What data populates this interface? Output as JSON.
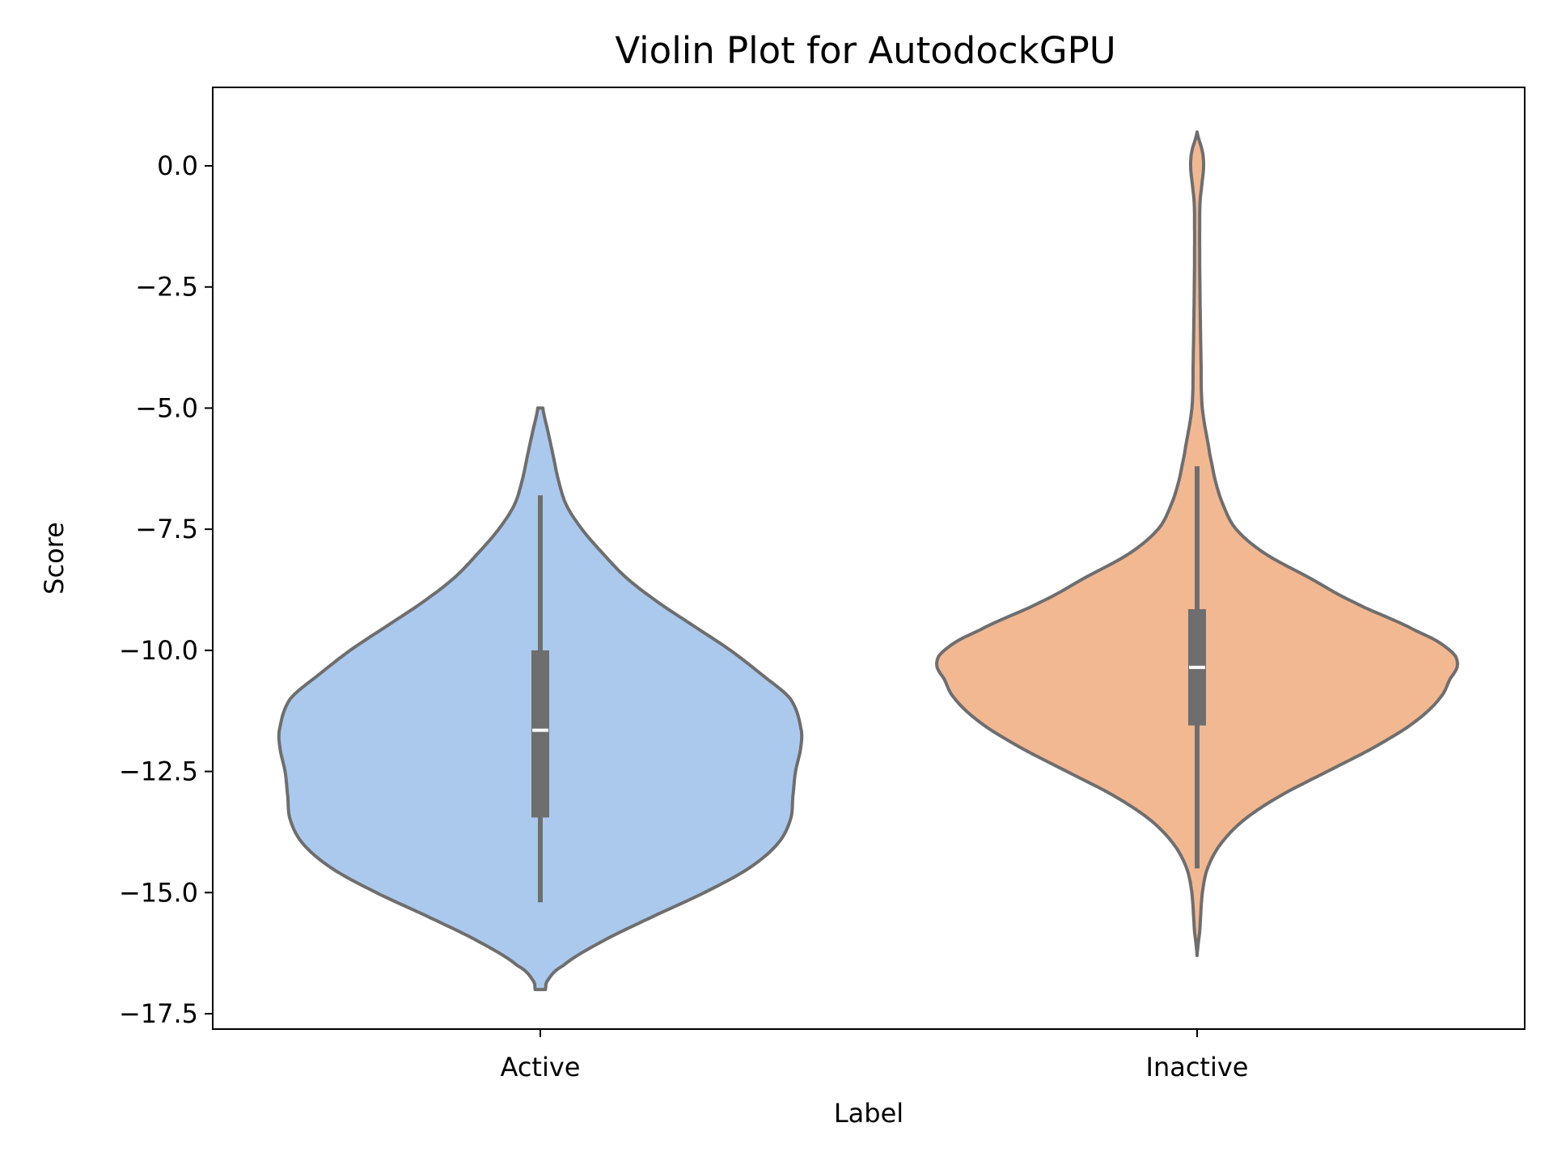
{
  "chart_data": {
    "type": "violin",
    "title": "Violin Plot for AutodockGPU",
    "xlabel": "Label",
    "ylabel": "Score",
    "ylim": [
      -17.8,
      1.6
    ],
    "yticks": [
      0.0,
      -2.5,
      -5.0,
      -7.5,
      -10.0,
      -12.5,
      -15.0,
      -17.5
    ],
    "ytick_labels": [
      "0.0",
      "−2.5",
      "−5.0",
      "−7.5",
      "−10.0",
      "−12.5",
      "−15.0",
      "−17.5"
    ],
    "categories": [
      "Active",
      "Inactive"
    ],
    "grid": false,
    "edge_color": "#6e6e6e",
    "series": [
      {
        "category": "Active",
        "color": "#abc9ec",
        "min": -15.2,
        "q1": -13.45,
        "median": -11.65,
        "q3": -10.0,
        "max": -6.8,
        "violin_min": -17.0,
        "violin_max": -5.0,
        "density_profile": [
          [
            -17.0,
            0.02
          ],
          [
            -16.8,
            0.03
          ],
          [
            -16.5,
            0.09
          ],
          [
            -16.0,
            0.24
          ],
          [
            -15.5,
            0.43
          ],
          [
            -15.0,
            0.63
          ],
          [
            -14.5,
            0.8
          ],
          [
            -14.0,
            0.91
          ],
          [
            -13.5,
            0.96
          ],
          [
            -13.0,
            0.97
          ],
          [
            -12.5,
            0.98
          ],
          [
            -12.0,
            1.0
          ],
          [
            -11.6,
            1.0
          ],
          [
            -11.0,
            0.96
          ],
          [
            -10.5,
            0.85
          ],
          [
            -10.0,
            0.73
          ],
          [
            -9.5,
            0.59
          ],
          [
            -9.0,
            0.45
          ],
          [
            -8.5,
            0.33
          ],
          [
            -8.0,
            0.24
          ],
          [
            -7.5,
            0.16
          ],
          [
            -7.0,
            0.1
          ],
          [
            -6.5,
            0.07
          ],
          [
            -6.0,
            0.05
          ],
          [
            -5.5,
            0.03
          ],
          [
            -5.0,
            0.01
          ]
        ]
      },
      {
        "category": "Inactive",
        "color": "#f2b892",
        "min": -14.5,
        "q1": -11.55,
        "median": -10.35,
        "q3": -9.15,
        "max": -6.2,
        "violin_min": -16.3,
        "violin_max": 0.7,
        "density_profile": [
          [
            -16.3,
            0.0
          ],
          [
            -15.8,
            0.01
          ],
          [
            -15.0,
            0.02
          ],
          [
            -14.5,
            0.04
          ],
          [
            -14.0,
            0.09
          ],
          [
            -13.5,
            0.18
          ],
          [
            -13.0,
            0.32
          ],
          [
            -12.5,
            0.5
          ],
          [
            -12.0,
            0.68
          ],
          [
            -11.5,
            0.83
          ],
          [
            -11.0,
            0.93
          ],
          [
            -10.6,
            0.97
          ],
          [
            -10.3,
            1.0
          ],
          [
            -10.0,
            0.97
          ],
          [
            -9.6,
            0.84
          ],
          [
            -9.0,
            0.6
          ],
          [
            -8.5,
            0.43
          ],
          [
            -8.0,
            0.26
          ],
          [
            -7.5,
            0.15
          ],
          [
            -7.0,
            0.1
          ],
          [
            -6.5,
            0.07
          ],
          [
            -6.0,
            0.05
          ],
          [
            -5.0,
            0.02
          ],
          [
            -4.0,
            0.015
          ],
          [
            -3.0,
            0.012
          ],
          [
            -2.0,
            0.01
          ],
          [
            -1.0,
            0.01
          ],
          [
            -0.7,
            0.012
          ],
          [
            -0.3,
            0.02
          ],
          [
            0.0,
            0.025
          ],
          [
            0.3,
            0.02
          ],
          [
            0.7,
            0.0
          ]
        ]
      }
    ]
  }
}
